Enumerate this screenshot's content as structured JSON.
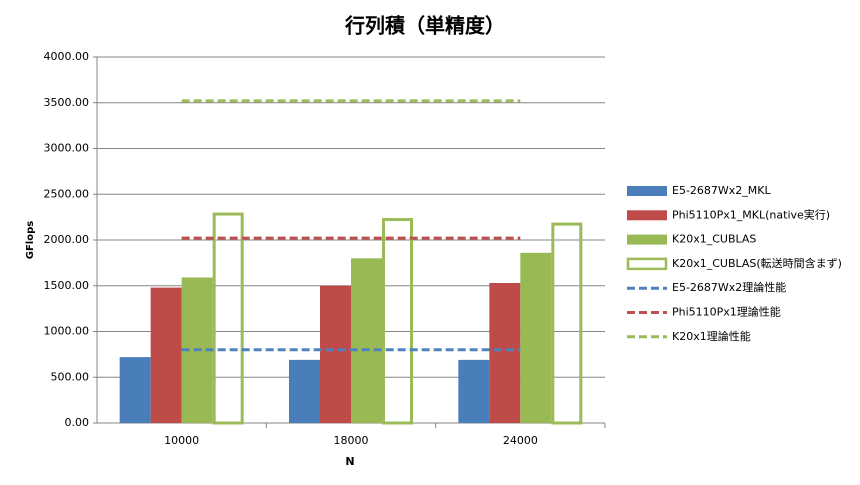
{
  "chart_data": {
    "type": "bar",
    "title": "行列積（単精度）",
    "x_label": "N",
    "y_label": "GFlops",
    "categories": [
      "10000",
      "18000",
      "24000"
    ],
    "ylim": [
      0,
      4000
    ],
    "yticks": [
      {
        "value": 0,
        "label": "0.00"
      },
      {
        "value": 500,
        "label": "500.00"
      },
      {
        "value": 1000,
        "label": "1000.00"
      },
      {
        "value": 1500,
        "label": "1500.00"
      },
      {
        "value": 2000,
        "label": "2000.00"
      },
      {
        "value": 2500,
        "label": "2500.00"
      },
      {
        "value": 3000,
        "label": "3000.00"
      },
      {
        "value": 3500,
        "label": "3500.00"
      },
      {
        "value": 4000,
        "label": "4000.00"
      }
    ],
    "grid": true,
    "legend": "right",
    "series": [
      {
        "name": "E5-2687Wx2_MKL",
        "kind": "bar",
        "color": "#4a7ebb",
        "values": [
          720,
          690,
          690
        ]
      },
      {
        "name": "Phi5110Px1_MKL(native実行)",
        "kind": "bar",
        "color": "#be4b48",
        "values": [
          1480,
          1500,
          1530
        ]
      },
      {
        "name": "K20x1_CUBLAS",
        "kind": "bar",
        "color": "#98b954",
        "values": [
          1590,
          1800,
          1860
        ]
      },
      {
        "name": "K20x1_CUBLAS(転送時間含まず)",
        "kind": "bar",
        "hollow": true,
        "color": "#9bbb59",
        "values": [
          2300,
          2240,
          2190
        ]
      },
      {
        "name": "E5-2687Wx2理論性能",
        "kind": "line",
        "dashed": true,
        "color": "#4f81bd",
        "values": [
          800,
          800,
          800
        ]
      },
      {
        "name": "Phi5110Px1理論性能",
        "kind": "line",
        "dashed": true,
        "color": "#c0504d",
        "values": [
          2020,
          2020,
          2020
        ]
      },
      {
        "name": "K20x1理論性能",
        "kind": "line",
        "dashed": true,
        "color": "#9bbb59",
        "values": [
          3520,
          3520,
          3520
        ]
      }
    ]
  }
}
